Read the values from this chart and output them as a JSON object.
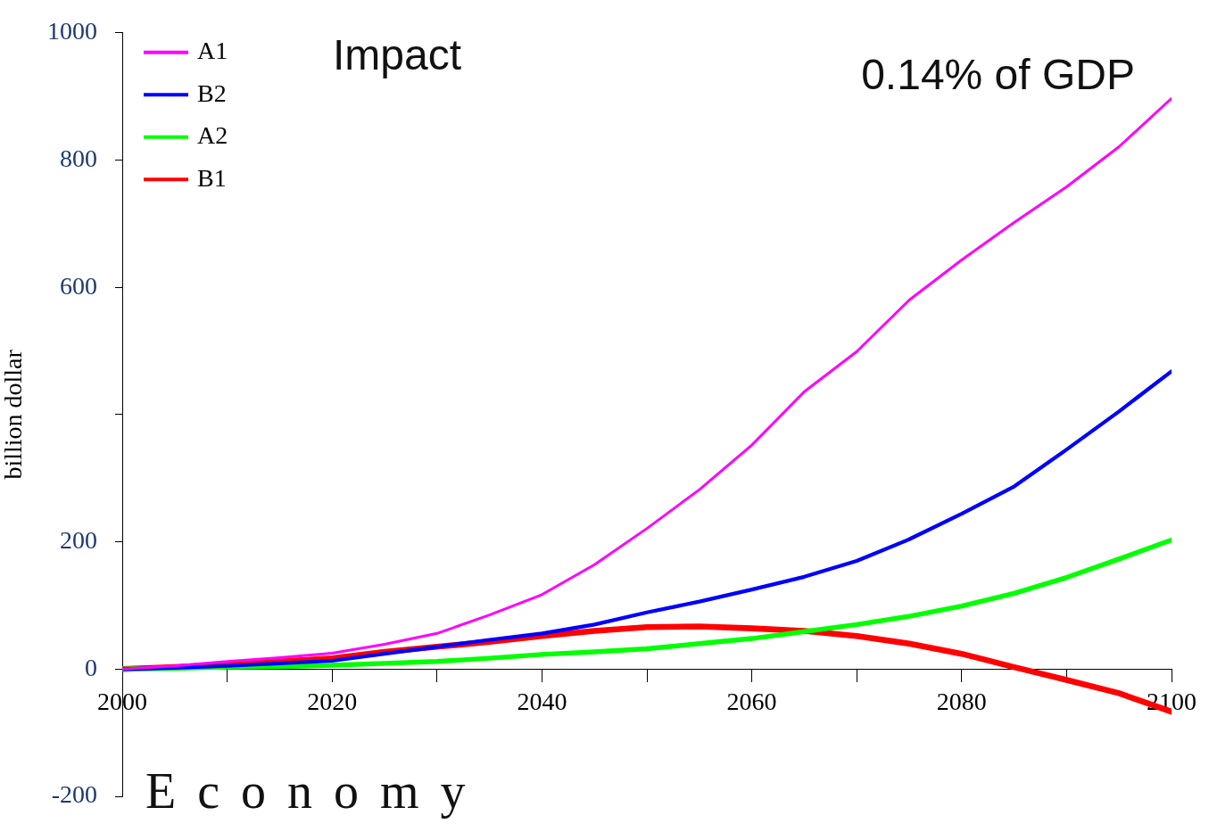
{
  "chart_data": {
    "type": "line",
    "ylabel": "billion dollar",
    "annotations": [
      "Impact",
      "0.14% of GDP",
      "Economy"
    ],
    "x": [
      2000,
      2005,
      2010,
      2015,
      2020,
      2025,
      2030,
      2035,
      2040,
      2045,
      2050,
      2055,
      2060,
      2065,
      2070,
      2075,
      2080,
      2085,
      2090,
      2095,
      2100
    ],
    "series": [
      {
        "name": "A1",
        "color": "#ff00ff",
        "values": [
          0,
          5,
          12,
          18,
          25,
          39,
          56,
          85,
          117,
          164,
          221,
          282,
          352,
          436,
          499,
          580,
          643,
          702,
          758,
          821,
          897
        ]
      },
      {
        "name": "B2",
        "color": "#0000ff",
        "values": [
          0,
          2,
          5,
          9,
          13,
          24,
          35,
          46,
          56,
          70,
          89,
          106,
          125,
          145,
          170,
          204,
          244,
          287,
          345,
          405,
          468
        ]
      },
      {
        "name": "A2",
        "color": "#00ff00",
        "values": [
          0,
          1,
          3,
          4,
          6,
          9,
          12,
          17,
          23,
          27,
          32,
          40,
          48,
          59,
          70,
          83,
          99,
          119,
          144,
          173,
          203
        ]
      },
      {
        "name": "B1",
        "color": "#ff0000",
        "values": [
          0,
          3,
          7,
          12,
          17,
          27,
          35,
          43,
          52,
          60,
          66,
          67,
          64,
          60,
          52,
          40,
          24,
          3,
          -17,
          -38,
          -67
        ]
      }
    ],
    "xlim": [
      2000,
      2100
    ],
    "xticks": [
      2000,
      {
        "value": 2010,
        "label": null
      },
      2020,
      {
        "value": 2030,
        "label": null
      },
      2040,
      {
        "value": 2050,
        "label": null
      },
      2060,
      {
        "value": 2070,
        "label": null
      },
      2080,
      {
        "value": 2090,
        "label": null
      },
      2100
    ],
    "ylim": [
      -200,
      1000
    ],
    "yticks": [
      -200,
      0,
      200,
      {
        "value": 400,
        "label": null
      },
      600,
      800,
      1000
    ],
    "grid": false,
    "legend": "top left",
    "marker": "none",
    "line_style": "solid"
  }
}
